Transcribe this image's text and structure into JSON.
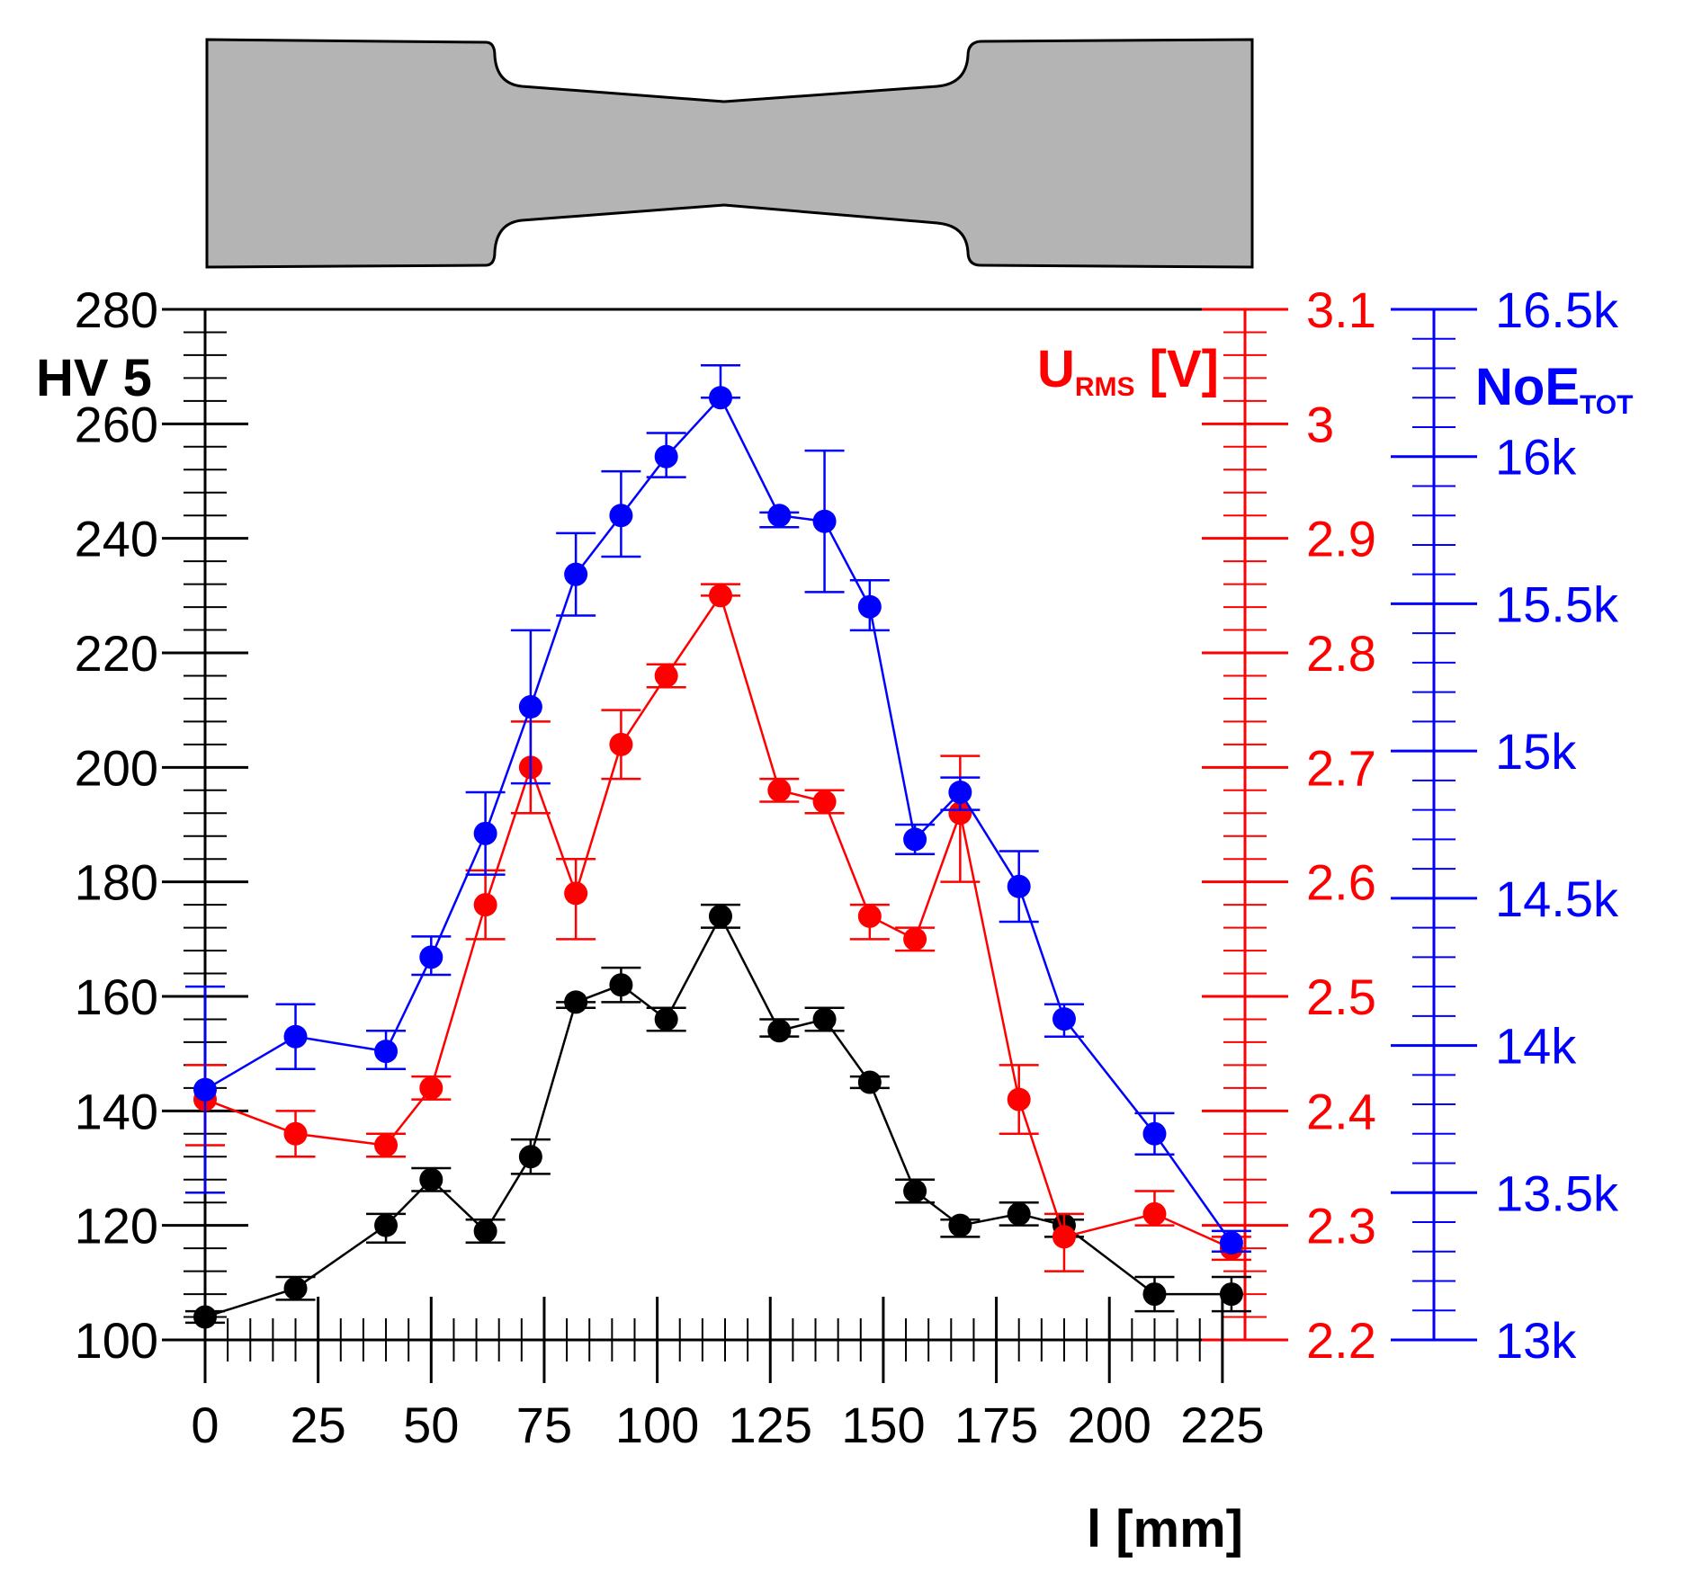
{
  "chart_data": {
    "type": "line",
    "x_label": "l [mm]",
    "x_range": [
      0,
      230
    ],
    "x_ticks": [
      0,
      25,
      50,
      75,
      100,
      125,
      150,
      175,
      200,
      225
    ],
    "x_tick_labels": [
      "0",
      "25",
      "50",
      "75",
      "100",
      "125",
      "150",
      "175",
      "200",
      "225"
    ],
    "axes": {
      "left": {
        "label": "HV 5",
        "range": [
          100,
          280
        ],
        "ticks": [
          100,
          120,
          140,
          160,
          180,
          200,
          220,
          240,
          260,
          280
        ],
        "tick_labels": [
          "100",
          "120",
          "140",
          "160",
          "180",
          "200",
          "220",
          "240",
          "260",
          "280"
        ],
        "color": "#000000"
      },
      "right_red": {
        "label_main": "U",
        "label_sub": "RMS",
        "label_unit": " [V]",
        "range": [
          2.2,
          3.1
        ],
        "ticks": [
          2.2,
          2.3,
          2.4,
          2.5,
          2.6,
          2.7,
          2.8,
          2.9,
          3.0,
          3.1
        ],
        "tick_labels": [
          "2.2",
          "2.3",
          "2.4",
          "2.5",
          "2.6",
          "2.7",
          "2.8",
          "2.9",
          "3",
          "3.1"
        ],
        "color": "#ff0000"
      },
      "right_blue": {
        "label_main": "NoE",
        "label_sub": "TOT",
        "range": [
          13000,
          16500
        ],
        "ticks": [
          13000,
          13500,
          14000,
          14500,
          15000,
          15500,
          16000,
          16500
        ],
        "tick_labels": [
          "13k",
          "13.5k",
          "14k",
          "14.5k",
          "15k",
          "15.5k",
          "16k",
          "16.5k"
        ],
        "color": "#0000ff"
      }
    },
    "series": [
      {
        "name": "HV 5",
        "axis": "left",
        "color": "#000000",
        "x": [
          0,
          20,
          40,
          50,
          62,
          72,
          82,
          92,
          102,
          114,
          127,
          137,
          147,
          157,
          167,
          180,
          190,
          210,
          227
        ],
        "values": [
          104,
          109,
          120,
          128,
          119,
          132,
          159,
          162,
          156,
          174,
          154,
          156,
          145,
          126,
          120,
          122,
          120,
          108,
          108
        ],
        "err_low": [
          103,
          107,
          117,
          126,
          117,
          129,
          158,
          159,
          154,
          172,
          153,
          154,
          144,
          124,
          118,
          120,
          118,
          105,
          105
        ],
        "err_high": [
          105,
          111,
          122,
          130,
          121,
          135,
          159,
          165,
          158,
          176,
          156,
          158,
          146,
          128,
          121,
          124,
          121,
          111,
          111
        ]
      },
      {
        "name": "U_RMS",
        "axis": "right_red",
        "color": "#ff0000",
        "x": [
          0,
          20,
          40,
          50,
          62,
          72,
          82,
          92,
          102,
          114,
          127,
          137,
          147,
          157,
          167,
          180,
          190,
          210,
          227
        ],
        "values": [
          2.41,
          2.38,
          2.37,
          2.42,
          2.58,
          2.7,
          2.59,
          2.72,
          2.78,
          2.85,
          2.68,
          2.67,
          2.57,
          2.55,
          2.66,
          2.41,
          2.29,
          2.31,
          2.28
        ],
        "err_low": [
          2.37,
          2.36,
          2.36,
          2.41,
          2.55,
          2.66,
          2.55,
          2.69,
          2.77,
          2.85,
          2.67,
          2.66,
          2.55,
          2.54,
          2.6,
          2.38,
          2.26,
          2.3,
          2.27
        ],
        "err_high": [
          2.44,
          2.4,
          2.38,
          2.43,
          2.61,
          2.74,
          2.62,
          2.75,
          2.79,
          2.86,
          2.69,
          2.68,
          2.58,
          2.56,
          2.71,
          2.44,
          2.31,
          2.33,
          2.29
        ]
      },
      {
        "name": "NoE_TOT",
        "axis": "right_blue",
        "color": "#0000ff",
        "x": [
          0,
          20,
          40,
          50,
          62,
          72,
          82,
          92,
          102,
          114,
          127,
          137,
          147,
          157,
          167,
          180,
          190,
          210,
          227
        ],
        "values": [
          13850,
          14030,
          13980,
          14300,
          14720,
          15150,
          15600,
          15800,
          16000,
          16200,
          15800,
          15780,
          15490,
          14700,
          14860,
          14540,
          14090,
          13700,
          13330
        ],
        "err_low": [
          13500,
          13920,
          13920,
          14240,
          14580,
          14890,
          15460,
          15660,
          15930,
          16200,
          15760,
          15540,
          15410,
          14650,
          14800,
          14420,
          14030,
          13630,
          13300
        ],
        "err_high": [
          14200,
          14140,
          14050,
          14370,
          14860,
          15410,
          15740,
          15950,
          16080,
          16310,
          15810,
          16020,
          15580,
          14750,
          14910,
          14660,
          14140,
          13770,
          13370
        ]
      }
    ]
  }
}
